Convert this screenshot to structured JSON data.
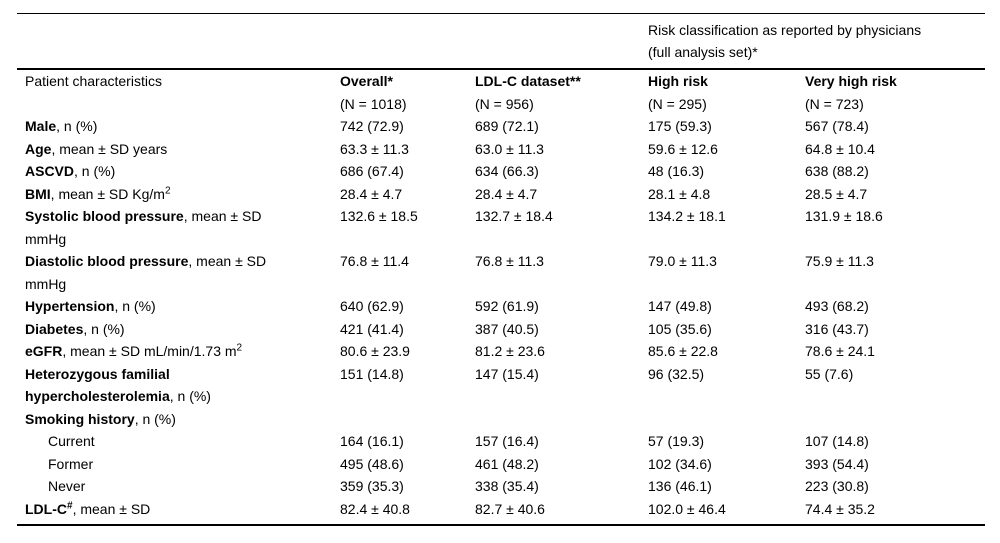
{
  "table": {
    "span_header": {
      "line1": "Risk classification as reported by physicians",
      "line2": "(full analysis set)*"
    },
    "columns": [
      {
        "label": "Patient characteristics"
      },
      {
        "label": "Overall*",
        "n": "(N = 1018)"
      },
      {
        "label": "LDL-C dataset**",
        "n": "(N = 956)"
      },
      {
        "label": "High risk",
        "n": "(N = 295)"
      },
      {
        "label": "Very high risk",
        "n": "(N = 723)"
      }
    ],
    "rows": [
      {
        "term": "Male",
        "suffix": ", n (%)",
        "values": [
          "742 (72.9)",
          "689 (72.1)",
          "175 (59.3)",
          "567 (78.4)"
        ]
      },
      {
        "term": "Age",
        "suffix": ", mean ± SD years",
        "values": [
          "63.3 ± 11.3",
          "63.0 ± 11.3",
          "59.6 ± 12.6",
          "64.8 ± 10.4"
        ]
      },
      {
        "term": "ASCVD",
        "suffix": ", n (%)",
        "values": [
          "686 (67.4)",
          "634 (66.3)",
          "48 (16.3)",
          "638 (88.2)"
        ]
      },
      {
        "term": "BMI",
        "suffix": ", mean ± SD Kg/m",
        "sup": "2",
        "values": [
          "28.4 ± 4.7",
          "28.4 ± 4.7",
          "28.1 ± 4.8",
          "28.5 ± 4.7"
        ]
      },
      {
        "term": "Systolic blood pressure",
        "suffix": ", mean ± SD",
        "line2": "mmHg",
        "values": [
          "132.6 ± 18.5",
          "132.7 ± 18.4",
          "134.2 ± 18.1",
          "131.9 ± 18.6"
        ]
      },
      {
        "term": "Diastolic blood pressure",
        "suffix": ", mean ± SD",
        "line2": "mmHg",
        "values": [
          "76.8 ± 11.4",
          "76.8 ± 11.3",
          "79.0 ± 11.3",
          "75.9 ± 11.3"
        ]
      },
      {
        "term": "Hypertension",
        "suffix": ", n (%)",
        "values": [
          "640 (62.9)",
          "592 (61.9)",
          "147 (49.8)",
          "493 (68.2)"
        ]
      },
      {
        "term": "Diabetes",
        "suffix": ", n (%)",
        "values": [
          "421 (41.4)",
          "387 (40.5)",
          "105 (35.6)",
          "316 (43.7)"
        ]
      },
      {
        "term": "eGFR",
        "suffix": ", mean ± SD mL/min/1.73 m",
        "sup": "2",
        "values": [
          "80.6 ± 23.9",
          "81.2 ± 23.6",
          "85.6 ± 22.8",
          "78.6 ± 24.1"
        ]
      },
      {
        "term": "Heterozygous familial",
        "term2": "hypercholesterolemia",
        "suffix": ", n (%)",
        "values": [
          "151 (14.8)",
          "147 (15.4)",
          "96 (32.5)",
          "55 (7.6)"
        ]
      },
      {
        "term": "Smoking history",
        "suffix": ", n (%)",
        "values": [
          "",
          "",
          "",
          ""
        ]
      },
      {
        "text": "Current",
        "values": [
          "164 (16.1)",
          "157 (16.4)",
          "57 (19.3)",
          "107 (14.8)"
        ]
      },
      {
        "text": "Former",
        "values": [
          "495 (48.6)",
          "461 (48.2)",
          "102 (34.6)",
          "393 (54.4)"
        ]
      },
      {
        "text": "Never",
        "values": [
          "359 (35.3)",
          "338 (35.4)",
          "136 (46.1)",
          "223 (30.8)"
        ]
      },
      {
        "term": "LDL-C",
        "sup": "#",
        "suffix": ", mean ± SD",
        "values": [
          "82.4 ± 40.8",
          "82.7 ± 40.6",
          "102.0 ± 46.4",
          "74.4 ± 35.2"
        ]
      }
    ]
  }
}
